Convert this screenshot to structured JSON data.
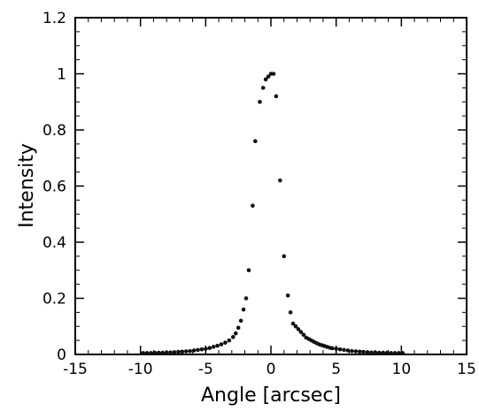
{
  "chart_data": {
    "type": "scatter",
    "title": "",
    "xlabel": "Angle [arcsec]",
    "ylabel": "Intensity",
    "xlim": [
      -15,
      15
    ],
    "ylim": [
      0,
      1.2
    ],
    "x_ticks": [
      "-15",
      "-10",
      "-5",
      "0",
      "5",
      "10",
      "15"
    ],
    "y_ticks": [
      "0",
      "0.2",
      "0.4",
      "0.6",
      "0.8",
      "1",
      "1.2"
    ],
    "grid": false,
    "legend": "none",
    "marker_color": "#111111",
    "series": [
      {
        "points": [
          [
            -9.8,
            0.005
          ],
          [
            -9.5,
            0.005
          ],
          [
            -9.2,
            0.005
          ],
          [
            -8.9,
            0.006
          ],
          [
            -8.6,
            0.006
          ],
          [
            -8.3,
            0.006
          ],
          [
            -8.0,
            0.007
          ],
          [
            -7.7,
            0.007
          ],
          [
            -7.4,
            0.008
          ],
          [
            -7.1,
            0.009
          ],
          [
            -6.8,
            0.01
          ],
          [
            -6.5,
            0.011
          ],
          [
            -6.2,
            0.012
          ],
          [
            -5.9,
            0.014
          ],
          [
            -5.6,
            0.016
          ],
          [
            -5.3,
            0.018
          ],
          [
            -5.0,
            0.02
          ],
          [
            -4.7,
            0.023
          ],
          [
            -4.4,
            0.027
          ],
          [
            -4.1,
            0.031
          ],
          [
            -3.8,
            0.036
          ],
          [
            -3.5,
            0.042
          ],
          [
            -3.2,
            0.05
          ],
          [
            -2.9,
            0.062
          ],
          [
            -2.7,
            0.075
          ],
          [
            -2.5,
            0.095
          ],
          [
            -2.3,
            0.12
          ],
          [
            -2.1,
            0.16
          ],
          [
            -1.9,
            0.2
          ],
          [
            -1.7,
            0.3
          ],
          [
            -1.4,
            0.53
          ],
          [
            -1.2,
            0.76
          ],
          [
            -0.85,
            0.9
          ],
          [
            -0.6,
            0.95
          ],
          [
            -0.4,
            0.98
          ],
          [
            -0.2,
            0.99
          ],
          [
            0.0,
            1.0
          ],
          [
            0.2,
            1.0
          ],
          [
            0.4,
            0.92
          ],
          [
            0.7,
            0.62
          ],
          [
            1.0,
            0.35
          ],
          [
            1.3,
            0.21
          ],
          [
            1.5,
            0.15
          ],
          [
            1.7,
            0.11
          ],
          [
            1.9,
            0.1
          ],
          [
            2.1,
            0.09
          ],
          [
            2.3,
            0.08
          ],
          [
            2.5,
            0.07
          ],
          [
            2.7,
            0.06
          ],
          [
            2.9,
            0.055
          ],
          [
            3.1,
            0.05
          ],
          [
            3.3,
            0.045
          ],
          [
            3.5,
            0.04
          ],
          [
            3.7,
            0.036
          ],
          [
            3.9,
            0.033
          ],
          [
            4.1,
            0.03
          ],
          [
            4.3,
            0.027
          ],
          [
            4.5,
            0.024
          ],
          [
            4.7,
            0.022
          ],
          [
            5.0,
            0.02
          ],
          [
            5.3,
            0.018
          ],
          [
            5.6,
            0.016
          ],
          [
            5.9,
            0.014
          ],
          [
            6.2,
            0.012
          ],
          [
            6.5,
            0.011
          ],
          [
            6.8,
            0.01
          ],
          [
            7.1,
            0.009
          ],
          [
            7.4,
            0.008
          ],
          [
            7.7,
            0.007
          ],
          [
            8.0,
            0.007
          ],
          [
            8.3,
            0.006
          ],
          [
            8.6,
            0.006
          ],
          [
            8.9,
            0.006
          ],
          [
            9.2,
            0.005
          ],
          [
            9.5,
            0.005
          ],
          [
            9.8,
            0.005
          ],
          [
            10.1,
            0.005
          ]
        ]
      }
    ]
  }
}
